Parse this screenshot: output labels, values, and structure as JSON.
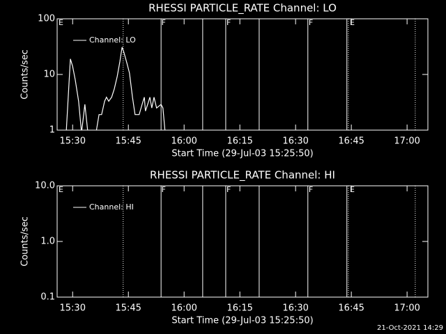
{
  "chart_data": [
    {
      "type": "line",
      "title": "RHESSI PARTICLE_RATE Channel: LO",
      "ylabel": "Counts/sec",
      "xlabel": "Start Time (29-Jul-03 15:25:50)",
      "yscale": "log",
      "ylim": [
        1,
        100
      ],
      "yticks": [
        1,
        10,
        100
      ],
      "xlim": [
        925.83,
        1025.6
      ],
      "xticks": [
        {
          "value": 930,
          "label": "15:30"
        },
        {
          "value": 945,
          "label": "15:45"
        },
        {
          "value": 960,
          "label": "16:00"
        },
        {
          "value": 975,
          "label": "16:15"
        },
        {
          "value": 990,
          "label": "16:30"
        },
        {
          "value": 1005,
          "label": "16:45"
        },
        {
          "value": 1020,
          "label": "17:00"
        }
      ],
      "series": [
        {
          "name": "Channel: LO",
          "color": "#ffffff",
          "x": [
            928.27,
            929.4,
            930.0,
            930.7,
            931.6,
            932.4,
            933.3,
            934.1,
            936.3,
            937.1,
            937.8,
            938.6,
            939.1,
            939.7,
            940.5,
            941.2,
            942.0,
            942.7,
            943.3,
            943.8,
            944.6,
            945.3,
            946.1,
            946.8,
            947.9,
            948.7,
            949.3,
            949.6,
            950.2,
            950.8,
            951.3,
            951.9,
            952.6,
            953.8,
            954.3,
            954.9
          ],
          "values": [
            0.9,
            19,
            14,
            8,
            3.3,
            0.9,
            2.9,
            0.9,
            0.9,
            1.9,
            1.9,
            3.3,
            3.9,
            3.3,
            3.9,
            5.5,
            9.2,
            17,
            31,
            25,
            16,
            10.6,
            3.9,
            1.9,
            1.9,
            2.9,
            3.9,
            2.2,
            2.9,
            3.9,
            2.5,
            3.9,
            2.5,
            2.9,
            2.5,
            0.9
          ]
        }
      ],
      "vlines": [
        {
          "x": 943.6,
          "style": "dotted"
        },
        {
          "x": 953.8,
          "style": "solid"
        },
        {
          "x": 965.0,
          "style": "solid"
        },
        {
          "x": 971.2,
          "style": "solid"
        },
        {
          "x": 980.2,
          "style": "solid"
        },
        {
          "x": 993.3,
          "style": "solid"
        },
        {
          "x": 1003.8,
          "style": "solid"
        },
        {
          "x": 1004.2,
          "style": "dotted"
        },
        {
          "x": 1022.2,
          "style": "dotted"
        }
      ],
      "annotations": [
        {
          "x": 926.2,
          "text": "E"
        },
        {
          "x": 953.9,
          "text": "F"
        },
        {
          "x": 971.4,
          "text": "F"
        },
        {
          "x": 993.5,
          "text": "F"
        },
        {
          "x": 1004.6,
          "text": "E"
        }
      ]
    },
    {
      "type": "line",
      "title": "RHESSI PARTICLE_RATE Channel: HI",
      "ylabel": "Counts/sec",
      "xlabel": "Start Time (29-Jul-03 15:25:50)",
      "yscale": "log",
      "ylim": [
        0.1,
        10
      ],
      "yticks": [
        0.1,
        {
          "value": 1,
          "label": "1.0"
        },
        {
          "value": 10,
          "label": "10.0"
        }
      ],
      "xlim": [
        925.83,
        1025.6
      ],
      "xticks": [
        {
          "value": 930,
          "label": "15:30"
        },
        {
          "value": 945,
          "label": "15:45"
        },
        {
          "value": 960,
          "label": "16:00"
        },
        {
          "value": 975,
          "label": "16:15"
        },
        {
          "value": 990,
          "label": "16:30"
        },
        {
          "value": 1005,
          "label": "16:45"
        },
        {
          "value": 1020,
          "label": "17:00"
        }
      ],
      "series": [
        {
          "name": "Channel: HI",
          "color": "#ffffff",
          "x": [],
          "values": []
        }
      ],
      "vlines": [
        {
          "x": 943.6,
          "style": "dotted"
        },
        {
          "x": 953.8,
          "style": "solid"
        },
        {
          "x": 965.0,
          "style": "solid"
        },
        {
          "x": 971.2,
          "style": "solid"
        },
        {
          "x": 980.2,
          "style": "solid"
        },
        {
          "x": 993.3,
          "style": "solid"
        },
        {
          "x": 1003.8,
          "style": "solid"
        },
        {
          "x": 1004.2,
          "style": "dotted"
        },
        {
          "x": 1022.2,
          "style": "dotted"
        }
      ],
      "annotations": [
        {
          "x": 926.2,
          "text": "E"
        },
        {
          "x": 953.9,
          "text": "F"
        },
        {
          "x": 971.4,
          "text": "F"
        },
        {
          "x": 993.5,
          "text": "F"
        },
        {
          "x": 1004.6,
          "text": "E"
        }
      ]
    }
  ],
  "footer": "21-Oct-2021 14:29"
}
